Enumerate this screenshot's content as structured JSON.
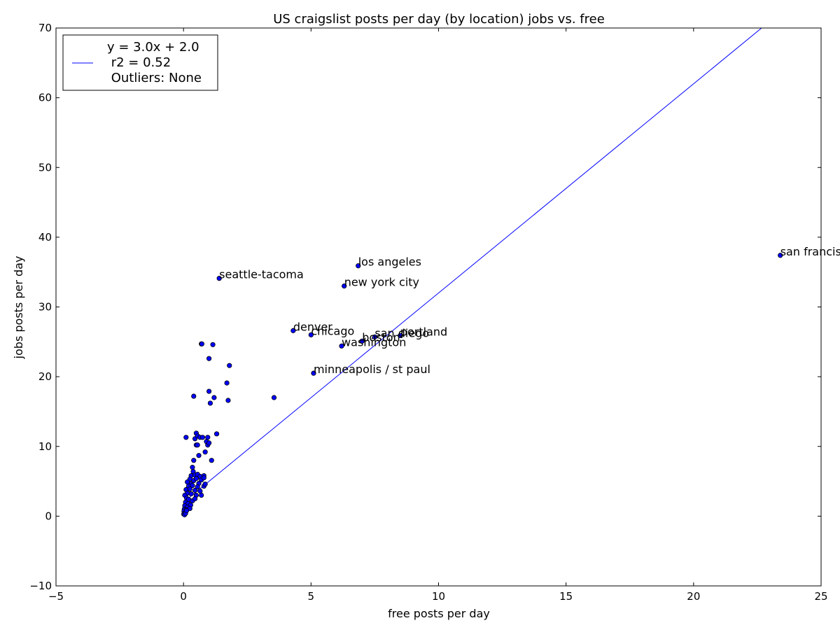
{
  "chart_data": {
    "type": "scatter",
    "title": "US craigslist posts per day (by location) jobs vs. free",
    "xlabel": "free posts per day",
    "ylabel": "jobs posts per day",
    "xlim": [
      -5,
      25
    ],
    "ylim": [
      -10,
      70
    ],
    "xticks": [
      -5,
      0,
      5,
      10,
      15,
      20,
      25
    ],
    "yticks": [
      -10,
      0,
      10,
      20,
      30,
      40,
      50,
      60,
      70
    ],
    "grid": false,
    "legend": {
      "placement": "top-left",
      "entries": [
        "y = 3.0x + 2.0",
        " r2 = 0.52",
        " Outliers: None"
      ]
    },
    "fit_line": {
      "slope": 3.0,
      "intercept": 2.0,
      "x_range": [
        0.0,
        23.4
      ],
      "color": "#0000ff"
    },
    "marker_color": "#0000ff",
    "labeled_points": [
      {
        "label": "san francisco",
        "x": 23.4,
        "y": 37.4
      },
      {
        "label": "los angeles",
        "x": 6.85,
        "y": 35.9
      },
      {
        "label": "seattle-tacoma",
        "x": 1.4,
        "y": 34.1
      },
      {
        "label": "new york city",
        "x": 6.3,
        "y": 33.0
      },
      {
        "label": "denver",
        "x": 4.3,
        "y": 26.6
      },
      {
        "label": "chicago",
        "x": 5.0,
        "y": 26.0
      },
      {
        "label": "san diego",
        "x": 7.5,
        "y": 25.7
      },
      {
        "label": "portland",
        "x": 8.5,
        "y": 25.9
      },
      {
        "label": "boston",
        "x": 7.0,
        "y": 25.1
      },
      {
        "label": "washington",
        "x": 6.2,
        "y": 24.4
      },
      {
        "label": "minneapolis / st paul",
        "x": 5.1,
        "y": 20.5
      }
    ],
    "points": [
      {
        "x": 0.7,
        "y": 24.7
      },
      {
        "x": 0.72,
        "y": 24.7
      },
      {
        "x": 1.15,
        "y": 24.6
      },
      {
        "x": 1.0,
        "y": 22.6
      },
      {
        "x": 1.8,
        "y": 21.6
      },
      {
        "x": 1.7,
        "y": 19.1
      },
      {
        "x": 1.0,
        "y": 17.9
      },
      {
        "x": 0.4,
        "y": 17.2
      },
      {
        "x": 1.2,
        "y": 17.0
      },
      {
        "x": 3.55,
        "y": 17.0
      },
      {
        "x": 1.75,
        "y": 16.6
      },
      {
        "x": 1.05,
        "y": 16.2
      },
      {
        "x": 0.1,
        "y": 11.3
      },
      {
        "x": 0.5,
        "y": 11.9
      },
      {
        "x": 1.3,
        "y": 11.8
      },
      {
        "x": 0.45,
        "y": 11.1
      },
      {
        "x": 0.55,
        "y": 11.5
      },
      {
        "x": 0.65,
        "y": 11.3
      },
      {
        "x": 0.75,
        "y": 11.3
      },
      {
        "x": 0.95,
        "y": 11.3
      },
      {
        "x": 0.9,
        "y": 10.7
      },
      {
        "x": 0.95,
        "y": 10.2
      },
      {
        "x": 1.0,
        "y": 10.5
      },
      {
        "x": 0.5,
        "y": 10.2
      },
      {
        "x": 0.55,
        "y": 10.2
      },
      {
        "x": 0.85,
        "y": 9.2
      },
      {
        "x": 0.6,
        "y": 8.7
      },
      {
        "x": 0.4,
        "y": 8.0
      },
      {
        "x": 1.1,
        "y": 8.0
      },
      {
        "x": 0.35,
        "y": 7.0
      },
      {
        "x": 0.38,
        "y": 6.4
      },
      {
        "x": 0.3,
        "y": 5.8
      },
      {
        "x": 0.45,
        "y": 5.9
      },
      {
        "x": 0.55,
        "y": 6.0
      },
      {
        "x": 0.65,
        "y": 5.7
      },
      {
        "x": 0.8,
        "y": 5.8
      },
      {
        "x": 0.25,
        "y": 5.3
      },
      {
        "x": 0.4,
        "y": 5.1
      },
      {
        "x": 0.5,
        "y": 5.4
      },
      {
        "x": 0.7,
        "y": 5.2
      },
      {
        "x": 0.8,
        "y": 5.5
      },
      {
        "x": 0.15,
        "y": 4.9
      },
      {
        "x": 0.3,
        "y": 4.6
      },
      {
        "x": 0.6,
        "y": 4.7
      },
      {
        "x": 0.2,
        "y": 4.3
      },
      {
        "x": 0.35,
        "y": 4.4
      },
      {
        "x": 0.55,
        "y": 4.2
      },
      {
        "x": 0.8,
        "y": 4.3
      },
      {
        "x": 0.85,
        "y": 4.6
      },
      {
        "x": 0.1,
        "y": 3.8
      },
      {
        "x": 0.25,
        "y": 3.9
      },
      {
        "x": 0.45,
        "y": 3.7
      },
      {
        "x": 0.65,
        "y": 3.6
      },
      {
        "x": 0.15,
        "y": 3.3
      },
      {
        "x": 0.3,
        "y": 3.2
      },
      {
        "x": 0.5,
        "y": 3.0
      },
      {
        "x": 0.7,
        "y": 3.0
      },
      {
        "x": 0.05,
        "y": 3.0
      },
      {
        "x": 0.12,
        "y": 2.6
      },
      {
        "x": 0.2,
        "y": 2.4
      },
      {
        "x": 0.35,
        "y": 2.2
      },
      {
        "x": 0.45,
        "y": 2.5
      },
      {
        "x": 0.08,
        "y": 2.0
      },
      {
        "x": 0.18,
        "y": 1.8
      },
      {
        "x": 0.28,
        "y": 1.6
      },
      {
        "x": 0.05,
        "y": 1.5
      },
      {
        "x": 0.15,
        "y": 1.3
      },
      {
        "x": 0.25,
        "y": 1.1
      },
      {
        "x": 0.03,
        "y": 1.0
      },
      {
        "x": 0.1,
        "y": 0.9
      },
      {
        "x": 0.02,
        "y": 0.7
      },
      {
        "x": 0.06,
        "y": 0.5
      },
      {
        "x": 0.01,
        "y": 0.3
      },
      {
        "x": 0.04,
        "y": 0.2
      },
      {
        "x": 0.08,
        "y": 0.4
      },
      {
        "x": 0.12,
        "y": 0.8
      }
    ]
  }
}
